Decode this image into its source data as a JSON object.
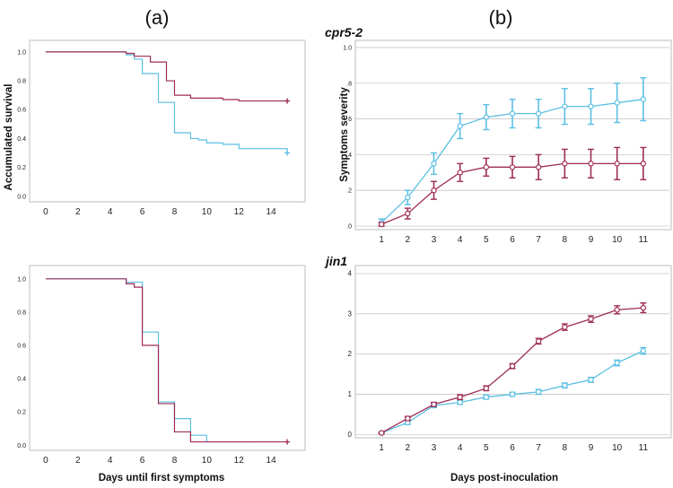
{
  "labels": {
    "panel_a": "(a)",
    "panel_b": "(b)",
    "genotype_top": "cpr5-2",
    "genotype_bottom": "jin1",
    "xlabel_a": "Days until first symptoms",
    "xlabel_b": "Days post-inoculation",
    "ylabel_survival": "Accumulated survival",
    "ylabel_severity": "Symptoms severity"
  },
  "colors": {
    "blue": "#5bbfe3",
    "red": "#9e2c55"
  },
  "chart_data": [
    {
      "id": "a-top",
      "type": "line",
      "title": "",
      "xlabel": "",
      "ylabel": "Accumulated survival",
      "xlim": [
        -1,
        16
      ],
      "ylim": [
        -0.02,
        1.08
      ],
      "xticks": [
        0,
        2,
        4,
        6,
        8,
        10,
        12,
        14
      ],
      "xticklabels": [
        "0",
        "2",
        "4",
        "6",
        "8",
        "10",
        "12",
        "14"
      ],
      "yticks": [
        0.0,
        0.2,
        0.4,
        0.6,
        0.8,
        1.0
      ],
      "yticklabels": [
        "0.0",
        "0.2",
        "0.4",
        "0.6",
        "0.8",
        "1.0"
      ],
      "grid": false,
      "step": true,
      "series": [
        {
          "name": "blue",
          "color": "#5bbfe3",
          "x": [
            0,
            5,
            5.5,
            6,
            6.5,
            7,
            7.5,
            8,
            9,
            9.5,
            10,
            11,
            12,
            15
          ],
          "y": [
            1.0,
            0.98,
            0.95,
            0.85,
            0.85,
            0.65,
            0.65,
            0.44,
            0.4,
            0.39,
            0.37,
            0.36,
            0.33,
            0.3
          ],
          "censor_end": true
        },
        {
          "name": "red",
          "color": "#9e2c55",
          "x": [
            0,
            5,
            5.5,
            6,
            6.5,
            7,
            7.5,
            8,
            9,
            10,
            11,
            12,
            15
          ],
          "y": [
            1.0,
            0.99,
            0.97,
            0.97,
            0.93,
            0.93,
            0.8,
            0.7,
            0.68,
            0.68,
            0.67,
            0.66,
            0.66
          ],
          "censor_end": true
        }
      ]
    },
    {
      "id": "b-top",
      "type": "line",
      "title": "",
      "xlabel": "",
      "ylabel": "Symptoms severity",
      "xlim": [
        0,
        12
      ],
      "ylim": [
        -0.02,
        1.04
      ],
      "xticks": [
        1,
        2,
        3,
        4,
        5,
        6,
        7,
        8,
        9,
        10,
        11
      ],
      "xticklabels": [
        "1",
        "2",
        "3",
        "4",
        "5",
        "6",
        "7",
        "8",
        "9",
        "10",
        "11"
      ],
      "yticks": [
        0.0,
        0.2,
        0.4,
        0.6,
        0.8,
        1.0
      ],
      "yticklabels": [
        ".0",
        ".2",
        ".4",
        ".6",
        ".8",
        "1.0"
      ],
      "grid": true,
      "step": false,
      "series": [
        {
          "name": "blue",
          "color": "#5bbfe3",
          "x": [
            1,
            2,
            3,
            4,
            5,
            6,
            7,
            8,
            9,
            10,
            11
          ],
          "y": [
            0.02,
            0.16,
            0.35,
            0.56,
            0.61,
            0.63,
            0.63,
            0.67,
            0.67,
            0.69,
            0.71
          ],
          "err": [
            0.02,
            0.04,
            0.06,
            0.07,
            0.07,
            0.08,
            0.08,
            0.1,
            0.1,
            0.11,
            0.12
          ]
        },
        {
          "name": "red",
          "color": "#9e2c55",
          "x": [
            1,
            2,
            3,
            4,
            5,
            6,
            7,
            8,
            9,
            10,
            11
          ],
          "y": [
            0.01,
            0.07,
            0.2,
            0.3,
            0.33,
            0.33,
            0.33,
            0.35,
            0.35,
            0.35,
            0.35
          ],
          "err": [
            0.01,
            0.03,
            0.05,
            0.05,
            0.05,
            0.06,
            0.07,
            0.08,
            0.08,
            0.09,
            0.09
          ]
        }
      ]
    },
    {
      "id": "a-bottom",
      "type": "line",
      "title": "",
      "xlabel": "Days until first symptoms",
      "ylabel": "",
      "xlim": [
        -1,
        16
      ],
      "ylim": [
        -0.02,
        1.08
      ],
      "xticks": [
        0,
        2,
        4,
        6,
        8,
        10,
        12,
        14
      ],
      "xticklabels": [
        "0",
        "2",
        "4",
        "6",
        "8",
        "10",
        "12",
        "14"
      ],
      "yticks": [
        0.0,
        0.2,
        0.4,
        0.6,
        0.8,
        1.0
      ],
      "yticklabels": [
        "0.0",
        "0.2",
        "0.4",
        "0.6",
        "0.8",
        "1.0"
      ],
      "grid": false,
      "step": true,
      "series": [
        {
          "name": "blue",
          "color": "#5bbfe3",
          "x": [
            0,
            5,
            6,
            7,
            8,
            9,
            10,
            13
          ],
          "y": [
            1.0,
            0.98,
            0.68,
            0.26,
            0.16,
            0.06,
            0.02,
            0.02
          ],
          "censor_end": false
        },
        {
          "name": "red",
          "color": "#9e2c55",
          "x": [
            0,
            5,
            5.5,
            6,
            7,
            8,
            9,
            10,
            15
          ],
          "y": [
            1.0,
            0.97,
            0.95,
            0.6,
            0.25,
            0.08,
            0.02,
            0.02,
            0.02
          ],
          "censor_end": true
        }
      ]
    },
    {
      "id": "b-bottom",
      "type": "line",
      "title": "",
      "xlabel": "Days post-inoculation",
      "ylabel": "",
      "xlim": [
        0,
        12
      ],
      "ylim": [
        -0.08,
        4.2
      ],
      "xticks": [
        1,
        2,
        3,
        4,
        5,
        6,
        7,
        8,
        9,
        10,
        11
      ],
      "xticklabels": [
        "1",
        "2",
        "3",
        "4",
        "5",
        "6",
        "7",
        "8",
        "9",
        "10",
        "11"
      ],
      "yticks": [
        0,
        1,
        2,
        3,
        4
      ],
      "yticklabels": [
        "0",
        "1",
        "2",
        "3",
        "4"
      ],
      "grid": true,
      "step": false,
      "series": [
        {
          "name": "blue",
          "color": "#5bbfe3",
          "x": [
            1,
            2,
            3,
            4,
            5,
            6,
            7,
            8,
            9,
            10,
            11
          ],
          "y": [
            0.04,
            0.3,
            0.72,
            0.8,
            0.93,
            1.0,
            1.06,
            1.22,
            1.36,
            1.78,
            2.08
          ],
          "err": [
            0.02,
            0.05,
            0.05,
            0.05,
            0.05,
            0.05,
            0.06,
            0.06,
            0.06,
            0.07,
            0.08
          ]
        },
        {
          "name": "red",
          "color": "#9e2c55",
          "x": [
            1,
            2,
            3,
            4,
            5,
            6,
            7,
            8,
            9,
            10,
            11
          ],
          "y": [
            0.04,
            0.4,
            0.75,
            0.93,
            1.15,
            1.7,
            2.32,
            2.67,
            2.87,
            3.1,
            3.15
          ],
          "err": [
            0.02,
            0.05,
            0.05,
            0.06,
            0.06,
            0.06,
            0.07,
            0.08,
            0.08,
            0.1,
            0.12
          ]
        }
      ]
    }
  ]
}
